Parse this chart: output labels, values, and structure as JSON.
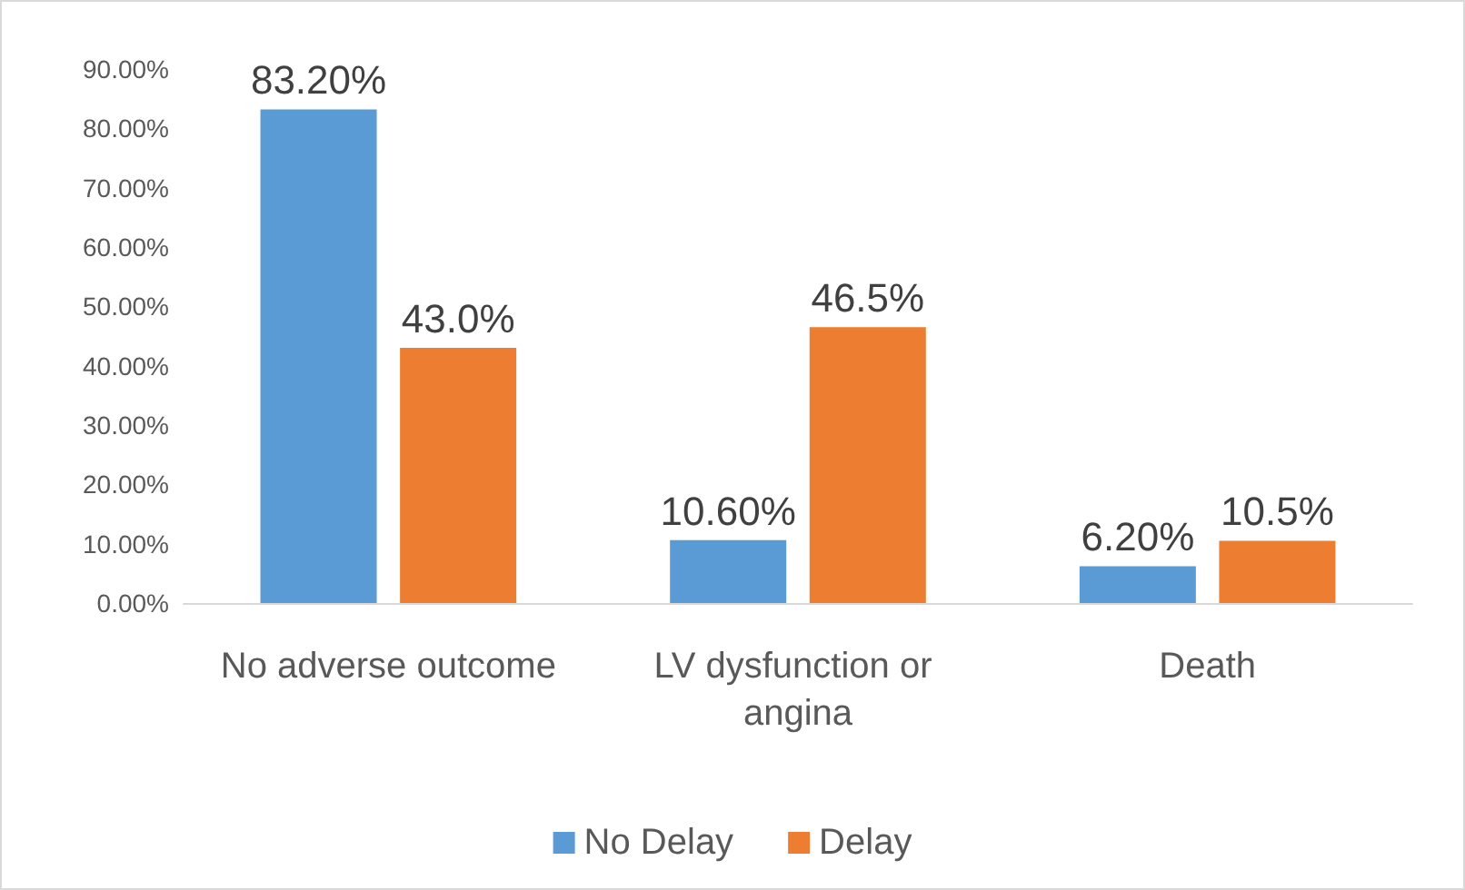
{
  "chart_data": {
    "type": "bar",
    "categories": [
      "No adverse outcome",
      "LV dysfunction or angina",
      "Death"
    ],
    "series": [
      {
        "name": "No Delay",
        "color": "#5b9bd5",
        "values": [
          83.2,
          10.6,
          6.2
        ],
        "value_labels": [
          "83.20%",
          "10.60%",
          "6.20%"
        ]
      },
      {
        "name": "Delay",
        "color": "#ed7d31",
        "values": [
          43.0,
          46.5,
          10.5
        ],
        "value_labels": [
          "43.0%",
          "46.5%",
          "10.5%"
        ]
      }
    ],
    "ylim": [
      0,
      90
    ],
    "yticks": [
      {
        "value": 0,
        "label": "0.00%"
      },
      {
        "value": 10,
        "label": "10.00%"
      },
      {
        "value": 20,
        "label": "20.00%"
      },
      {
        "value": 30,
        "label": "30.00%"
      },
      {
        "value": 40,
        "label": "40.00%"
      },
      {
        "value": 50,
        "label": "50.00%"
      },
      {
        "value": 60,
        "label": "60.00%"
      },
      {
        "value": 70,
        "label": "70.00%"
      },
      {
        "value": 80,
        "label": "80.00%"
      },
      {
        "value": 90,
        "label": "90.00%"
      }
    ],
    "grid": false,
    "legend": "bottom"
  }
}
